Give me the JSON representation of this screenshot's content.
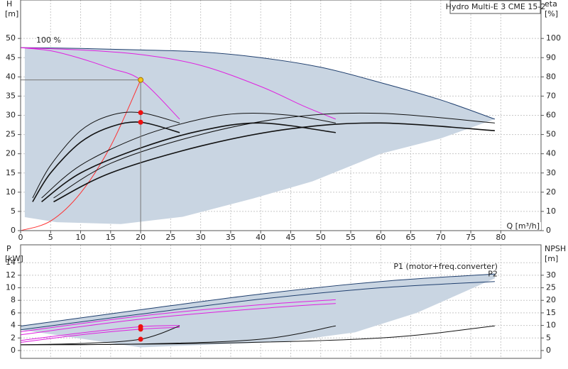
{
  "chart_data": [
    {
      "type": "line",
      "title": "Hydro Multi-E 3 CME 15-2",
      "y_label": "H",
      "y_unit": "[m]",
      "y2_label": "eta",
      "y2_unit": "[%]",
      "x_label": "Q [m³/h]",
      "xlim": [
        0,
        86.7
      ],
      "xticks": [
        0,
        5,
        10,
        15,
        20,
        25,
        30,
        35,
        40,
        45,
        50,
        55,
        60,
        65,
        70,
        75,
        80
      ],
      "ylim": [
        0,
        60
      ],
      "yticks": [
        0,
        5,
        10,
        15,
        20,
        25,
        30,
        35,
        40,
        45,
        50
      ],
      "y2lim": [
        0,
        120
      ],
      "y2ticks": [
        0,
        10,
        20,
        30,
        40,
        50,
        60,
        70,
        80,
        90,
        100
      ],
      "grid": true,
      "series": [
        {
          "color": "#c9d5e2",
          "fill": true,
          "x": [
            0.7,
            10,
            20,
            30,
            40,
            50,
            60,
            70,
            79,
            70,
            60,
            48.6,
            38.6,
            27,
            16.7,
            6,
            0.7
          ],
          "values": [
            47.5,
            47.3,
            47,
            46.5,
            45,
            42.5,
            38.5,
            34,
            29,
            24,
            20,
            12.8,
            8.3,
            3.6,
            1.7,
            2.2,
            3.5
          ]
        },
        {
          "color": "#1f3f6e",
          "x": [
            0,
            10,
            20,
            30,
            40,
            50,
            60,
            70,
            79
          ],
          "values": [
            47.6,
            47.4,
            47,
            46.5,
            45,
            42.5,
            38.5,
            34,
            29
          ]
        },
        {
          "name": "100 %",
          "label_at": "start",
          "color": "#e020e0",
          "x": [
            0,
            5,
            10,
            15,
            20,
            26.5
          ],
          "values": [
            47.6,
            46.8,
            44.8,
            42.2,
            39.2,
            29
          ]
        },
        {
          "color": "#e020e0",
          "x": [
            0,
            10,
            20,
            30,
            40,
            47,
            52.5
          ],
          "values": [
            47.6,
            47,
            45.8,
            43,
            37.5,
            32.5,
            29
          ]
        },
        {
          "color": "#ff3030",
          "x": [
            0,
            5,
            10,
            15,
            20
          ],
          "values": [
            0,
            2.5,
            9.8,
            22,
            39.2
          ]
        },
        {
          "color": "#111111",
          "width": 1.6,
          "x": [
            2,
            5,
            10,
            15,
            20,
            26.5
          ],
          "values": [
            7.5,
            15,
            23,
            27,
            28.2,
            25.5
          ]
        },
        {
          "color": "#111111",
          "x": [
            2,
            5,
            10,
            15,
            20,
            26.5
          ],
          "values": [
            8.5,
            17,
            26,
            30,
            30.7,
            28
          ]
        },
        {
          "color": "#111111",
          "width": 1.6,
          "x": [
            3.5,
            10,
            20,
            30,
            40,
            52.5
          ],
          "values": [
            7.5,
            15,
            21.5,
            26,
            28,
            25.5
          ]
        },
        {
          "color": "#111111",
          "x": [
            3.5,
            10,
            20,
            30,
            37,
            45,
            52.5
          ],
          "values": [
            8.5,
            17,
            24.5,
            29,
            30.5,
            30,
            28
          ]
        },
        {
          "color": "#111111",
          "width": 1.6,
          "x": [
            5.5,
            15,
            30,
            45,
            60,
            79
          ],
          "values": [
            7.5,
            15,
            22,
            26.5,
            28,
            26
          ]
        },
        {
          "color": "#111111",
          "x": [
            5.5,
            15,
            30,
            45,
            60,
            79
          ],
          "values": [
            8.5,
            17.5,
            25,
            29.5,
            30.5,
            28
          ]
        }
      ],
      "markers": [
        {
          "x": 20,
          "y": 39.2,
          "color": "#f5c518",
          "guides": true
        },
        {
          "x": 20,
          "y": 30.7,
          "color": "#ee1111"
        },
        {
          "x": 20,
          "y": 28.2,
          "color": "#ee1111"
        }
      ]
    },
    {
      "type": "line",
      "y_label": "P",
      "y_unit": "[kW]",
      "y2_label": "NPSH",
      "y2_unit": "[m]",
      "ylim": [
        -1.25,
        16.85
      ],
      "yticks": [
        0,
        2,
        4,
        6,
        8,
        10,
        12,
        14
      ],
      "y2lim": [
        -3.125,
        42.125
      ],
      "y2ticks": [
        0,
        5,
        10,
        15,
        20,
        25,
        30
      ],
      "grid": true,
      "series": [
        {
          "color": "#c9d5e2",
          "fill": true,
          "x": [
            0,
            20,
            40,
            60,
            79,
            79,
            66,
            55.7,
            43.9,
            20,
            0
          ],
          "values": [
            3.9,
            6.5,
            9,
            11,
            12.2,
            11.5,
            6,
            2.9,
            1.4,
            0.5,
            3.3
          ]
        },
        {
          "name": "P1 (motor+freq.converter)",
          "label_at": "end",
          "color": "#1f3f6e",
          "x": [
            0,
            20,
            40,
            60,
            79
          ],
          "values": [
            3.9,
            6.5,
            9,
            11,
            12.2
          ]
        },
        {
          "name": "P2",
          "label_at": "end",
          "color": "#1f3f6e",
          "x": [
            0,
            20,
            40,
            60,
            79
          ],
          "values": [
            3.3,
            5.8,
            8.2,
            10,
            11
          ]
        },
        {
          "color": "#e020e0",
          "x": [
            0,
            20,
            40,
            52.5
          ],
          "values": [
            3,
            5.5,
            7.3,
            8.1
          ]
        },
        {
          "color": "#e020e0",
          "x": [
            0,
            20,
            40,
            52.5
          ],
          "values": [
            2.5,
            5,
            6.7,
            7.5
          ]
        },
        {
          "color": "#e020e0",
          "x": [
            0,
            10,
            20,
            26.5
          ],
          "values": [
            1.6,
            2.8,
            3.8,
            4
          ]
        },
        {
          "color": "#e020e0",
          "x": [
            0,
            10,
            20,
            26.5
          ],
          "values": [
            1.3,
            2.5,
            3.4,
            3.7
          ]
        },
        {
          "color": "#111111",
          "axis": "y2",
          "x": [
            0,
            10,
            20,
            26.5
          ],
          "values": [
            2.3,
            2.8,
            4.5,
            9.8
          ]
        },
        {
          "color": "#111111",
          "axis": "y2",
          "x": [
            0,
            20,
            40,
            52.5
          ],
          "values": [
            2.3,
            2.6,
            4.5,
            9.8
          ]
        },
        {
          "color": "#111111",
          "axis": "y2",
          "x": [
            0,
            30,
            60,
            79
          ],
          "values": [
            2.3,
            2.8,
            5,
            9.8
          ]
        }
      ],
      "markers": [
        {
          "x": 20,
          "y": 3.8,
          "color": "#ee1111"
        },
        {
          "x": 20,
          "y": 3.4,
          "color": "#ee1111"
        },
        {
          "x": 20,
          "y": 1.8,
          "color": "#ee1111"
        }
      ]
    }
  ]
}
